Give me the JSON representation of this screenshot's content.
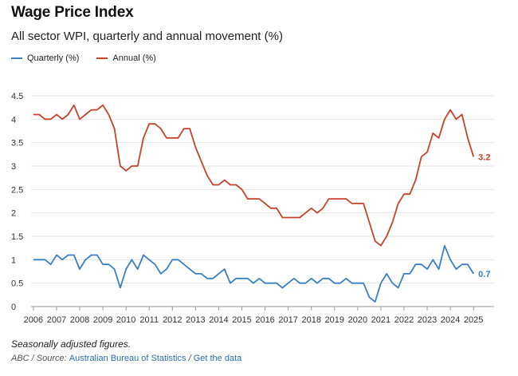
{
  "title": "Wage Price Index",
  "subtitle": "All sector WPI, quarterly and annual movement (%)",
  "legend": {
    "quarterly": "Quarterly (%)",
    "annual": "Annual (%)"
  },
  "colors": {
    "quarterly": "#3c7fc0",
    "annual": "#c6432a",
    "grid": "#e3e3e3",
    "axis": "#999999"
  },
  "footer": {
    "note": "Seasonally adjusted figures.",
    "source_prefix": "ABC / Source:",
    "source_link": "Australian Bureau of Statistics",
    "separator": "/",
    "data_link": "Get the data"
  },
  "chart_data": {
    "type": "line",
    "title": "Wage Price Index",
    "subtitle": "All sector WPI, quarterly and annual movement (%)",
    "xlabel": "",
    "ylabel": "",
    "x_start": 2006,
    "x_step": 0.25,
    "xlim": [
      2005.9,
      2025.2
    ],
    "xticks": [
      2006,
      2007,
      2008,
      2009,
      2010,
      2011,
      2012,
      2013,
      2014,
      2015,
      2016,
      2017,
      2018,
      2019,
      2020,
      2021,
      2022,
      2023,
      2024,
      2025
    ],
    "ylim": [
      0,
      4.5
    ],
    "yticks": [
      0,
      0.5,
      1,
      1.5,
      2,
      2.5,
      3,
      3.5,
      4,
      4.5
    ],
    "ytick_labels": [
      "0",
      "0.5",
      "1",
      "1.5",
      "2",
      "2.5",
      "3",
      "3.5",
      "4",
      "4.5"
    ],
    "grid": true,
    "legend_position": "top-left",
    "series": [
      {
        "name": "Quarterly (%)",
        "key": "quarterly",
        "end_label": "0.7",
        "values": [
          1.0,
          1.0,
          1.0,
          0.9,
          1.1,
          1.0,
          1.1,
          1.1,
          0.8,
          1.0,
          1.1,
          1.1,
          0.9,
          0.9,
          0.8,
          0.4,
          0.8,
          1.0,
          0.8,
          1.1,
          1.0,
          0.9,
          0.7,
          0.8,
          1.0,
          1.0,
          0.9,
          0.8,
          0.7,
          0.7,
          0.6,
          0.6,
          0.7,
          0.8,
          0.5,
          0.6,
          0.6,
          0.6,
          0.5,
          0.6,
          0.5,
          0.5,
          0.5,
          0.4,
          0.5,
          0.6,
          0.5,
          0.5,
          0.6,
          0.5,
          0.6,
          0.6,
          0.5,
          0.5,
          0.6,
          0.5,
          0.5,
          0.5,
          0.2,
          0.1,
          0.5,
          0.7,
          0.5,
          0.4,
          0.7,
          0.7,
          0.9,
          0.9,
          0.8,
          1.0,
          0.8,
          1.3,
          1.0,
          0.8,
          0.9,
          0.9,
          0.7
        ]
      },
      {
        "name": "Annual (%)",
        "key": "annual",
        "end_label": "3.2",
        "values": [
          4.1,
          4.1,
          4.0,
          4.0,
          4.1,
          4.0,
          4.1,
          4.3,
          4.0,
          4.1,
          4.2,
          4.2,
          4.3,
          4.1,
          3.8,
          3.0,
          2.9,
          3.0,
          3.0,
          3.6,
          3.9,
          3.9,
          3.8,
          3.6,
          3.6,
          3.6,
          3.8,
          3.8,
          3.4,
          3.1,
          2.8,
          2.6,
          2.6,
          2.7,
          2.6,
          2.6,
          2.5,
          2.3,
          2.3,
          2.3,
          2.2,
          2.1,
          2.1,
          1.9,
          1.9,
          1.9,
          1.9,
          2.0,
          2.1,
          2.0,
          2.1,
          2.3,
          2.3,
          2.3,
          2.3,
          2.2,
          2.2,
          2.2,
          1.8,
          1.4,
          1.3,
          1.5,
          1.8,
          2.2,
          2.4,
          2.4,
          2.7,
          3.2,
          3.3,
          3.7,
          3.6,
          4.0,
          4.2,
          4.0,
          4.1,
          3.6,
          3.2
        ]
      }
    ]
  }
}
